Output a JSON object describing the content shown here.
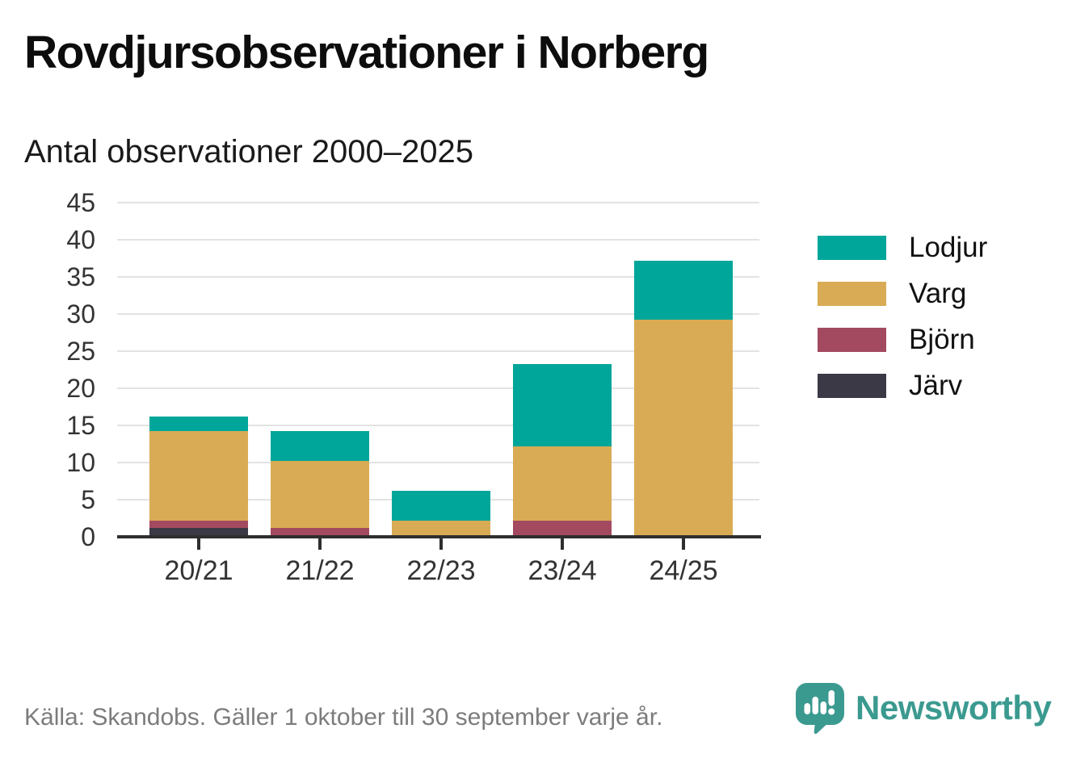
{
  "header": {
    "title": "Rovdjursobservationer i Norberg",
    "subtitle": "Antal observationer 2000–2025"
  },
  "chart_data": {
    "type": "bar",
    "stacked": true,
    "title": "Rovdjursobservationer i Norberg",
    "subtitle": "Antal observationer 2000–2025",
    "xlabel": "",
    "ylabel": "",
    "categories": [
      "20/21",
      "21/22",
      "22/23",
      "23/24",
      "24/25"
    ],
    "series": [
      {
        "name": "Järv",
        "color": "#3c3946",
        "values": [
          1,
          0,
          0,
          0,
          0
        ]
      },
      {
        "name": "Björn",
        "color": "#a34a60",
        "values": [
          1,
          1,
          0,
          2,
          0
        ]
      },
      {
        "name": "Varg",
        "color": "#d9ab55",
        "values": [
          12,
          9,
          2,
          10,
          29
        ]
      },
      {
        "name": "Lodjur",
        "color": "#00a69a",
        "values": [
          2,
          4,
          4,
          11,
          8
        ]
      }
    ],
    "stack_order_bottom_to_top": [
      "Järv",
      "Björn",
      "Varg",
      "Lodjur"
    ],
    "totals": [
      16,
      14,
      6,
      23,
      37
    ],
    "ylim": [
      0,
      45
    ],
    "yticks": [
      0,
      5,
      10,
      15,
      20,
      25,
      30,
      35,
      40,
      45
    ],
    "grid": true,
    "legend_position": "right"
  },
  "legend": [
    {
      "label": "Lodjur",
      "color": "#00a69a"
    },
    {
      "label": "Varg",
      "color": "#d9ab55"
    },
    {
      "label": "Björn",
      "color": "#a34a60"
    },
    {
      "label": "Järv",
      "color": "#3c3946"
    }
  ],
  "footer": {
    "source": "Källa: Skandobs. Gäller 1 oktober till 30 september varje år.",
    "brand": "Newsworthy"
  },
  "icons": {
    "brand": "speech-bubble-bar-chart-icon"
  },
  "colors": {
    "lodjur": "#00a69a",
    "varg": "#d9ab55",
    "bjorn": "#a34a60",
    "jarv": "#3c3946",
    "gridline": "#e3e3e3",
    "axis": "#2e2e2e",
    "brand_teal": "#3b9a90",
    "source_text": "#7c7c7c"
  }
}
